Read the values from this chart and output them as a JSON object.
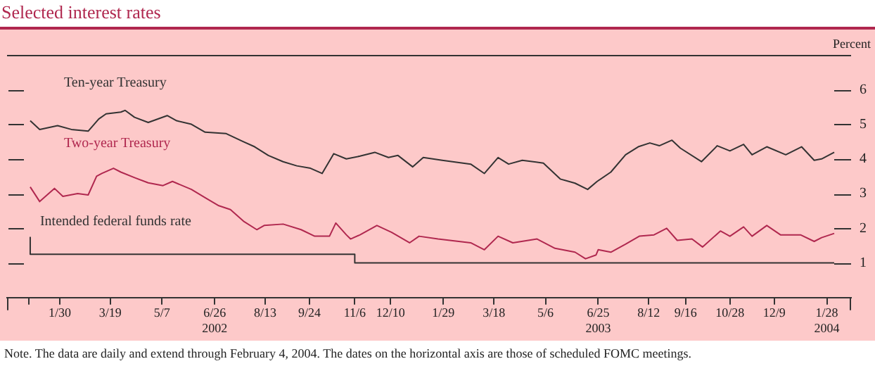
{
  "chart_data": {
    "type": "line",
    "title": "Selected interest rates",
    "ylabel": "Percent",
    "xlim": [
      "2001-12-11",
      "2004-02-20"
    ],
    "xticks": [
      {
        "value": "2002-01-01",
        "label": null
      },
      {
        "value": "2002-01-30",
        "label": "1/30"
      },
      {
        "value": "2002-03-19",
        "label": "3/19"
      },
      {
        "value": "2002-05-07",
        "label": "5/7"
      },
      {
        "value": "2002-06-26",
        "label": "6/26\n2002"
      },
      {
        "value": "2002-08-13",
        "label": "8/13"
      },
      {
        "value": "2002-09-24",
        "label": "9/24"
      },
      {
        "value": "2002-11-06",
        "label": "11/6"
      },
      {
        "value": "2002-12-10",
        "label": "12/10"
      },
      {
        "value": "2003-01-29",
        "label": "1/29"
      },
      {
        "value": "2003-03-18",
        "label": "3/18"
      },
      {
        "value": "2003-05-06",
        "label": "5/6"
      },
      {
        "value": "2003-06-25",
        "label": "6/25\n2003"
      },
      {
        "value": "2003-08-12",
        "label": "8/12"
      },
      {
        "value": "2003-09-16",
        "label": "9/16"
      },
      {
        "value": "2003-10-28",
        "label": "10/28"
      },
      {
        "value": "2003-12-09",
        "label": "12/9"
      },
      {
        "value": "2004-01-28",
        "label": "1/28\n2004"
      }
    ],
    "ylim": [
      0,
      7
    ],
    "yticks": [
      1,
      2,
      3,
      4,
      5,
      6
    ],
    "grid": false,
    "series": [
      {
        "name": "Ten-year Treasury",
        "color": "#333333",
        "x": [
          "2002-01-02",
          "2002-01-11",
          "2002-01-28",
          "2002-02-10",
          "2002-02-26",
          "2002-03-08",
          "2002-03-15",
          "2002-03-29",
          "2002-04-02",
          "2002-04-11",
          "2002-04-24",
          "2002-05-12",
          "2002-05-21",
          "2002-06-04",
          "2002-06-17",
          "2002-07-07",
          "2002-07-23",
          "2002-08-03",
          "2002-08-16",
          "2002-08-30",
          "2002-09-12",
          "2002-09-25",
          "2002-10-06",
          "2002-10-17",
          "2002-10-29",
          "2002-11-11",
          "2002-11-25",
          "2002-12-08",
          "2002-12-17",
          "2002-12-31",
          "2003-01-10",
          "2003-01-28",
          "2003-02-24",
          "2003-03-09",
          "2003-03-22",
          "2003-04-01",
          "2003-04-14",
          "2003-05-04",
          "2003-05-20",
          "2003-06-03",
          "2003-06-15",
          "2003-06-24",
          "2003-07-07",
          "2003-07-21",
          "2003-08-02",
          "2003-08-13",
          "2003-08-22",
          "2003-09-03",
          "2003-09-11",
          "2003-10-01",
          "2003-10-16",
          "2003-10-28",
          "2003-11-10",
          "2003-11-18",
          "2003-12-02",
          "2003-12-20",
          "2004-01-04",
          "2004-01-16",
          "2004-01-23",
          "2004-02-04"
        ],
        "values": [
          5.1,
          4.85,
          4.96,
          4.85,
          4.8,
          5.15,
          5.3,
          5.35,
          5.4,
          5.2,
          5.05,
          5.25,
          5.1,
          5.0,
          4.77,
          4.73,
          4.5,
          4.35,
          4.1,
          3.92,
          3.8,
          3.73,
          3.58,
          4.15,
          4.0,
          4.08,
          4.19,
          4.04,
          4.1,
          3.77,
          4.04,
          3.96,
          3.85,
          3.58,
          4.04,
          3.85,
          3.96,
          3.88,
          3.42,
          3.3,
          3.12,
          3.35,
          3.62,
          4.12,
          4.35,
          4.46,
          4.38,
          4.54,
          4.31,
          3.92,
          4.38,
          4.23,
          4.42,
          4.12,
          4.35,
          4.12,
          4.35,
          3.96,
          4.0,
          4.19
        ]
      },
      {
        "name": "Two-year Treasury",
        "color": "#b0284f",
        "x": [
          "2002-01-02",
          "2002-01-11",
          "2002-01-25",
          "2002-02-02",
          "2002-02-16",
          "2002-02-26",
          "2002-03-06",
          "2002-03-11",
          "2002-03-22",
          "2002-03-29",
          "2002-04-11",
          "2002-04-24",
          "2002-05-08",
          "2002-05-17",
          "2002-06-04",
          "2002-06-17",
          "2002-06-30",
          "2002-07-11",
          "2002-07-24",
          "2002-08-05",
          "2002-08-12",
          "2002-08-30",
          "2002-09-16",
          "2002-09-29",
          "2002-10-13",
          "2002-10-19",
          "2002-10-29",
          "2002-11-02",
          "2002-11-11",
          "2002-11-27",
          "2002-12-11",
          "2002-12-28",
          "2003-01-06",
          "2003-01-24",
          "2003-02-24",
          "2003-03-09",
          "2003-03-22",
          "2003-04-05",
          "2003-04-28",
          "2003-05-15",
          "2003-06-03",
          "2003-06-13",
          "2003-06-23",
          "2003-06-25",
          "2003-07-07",
          "2003-07-21",
          "2003-08-03",
          "2003-08-17",
          "2003-08-29",
          "2003-09-08",
          "2003-09-22",
          "2003-10-02",
          "2003-10-19",
          "2003-10-28",
          "2003-11-10",
          "2003-11-18",
          "2003-12-02",
          "2003-12-15",
          "2004-01-03",
          "2004-01-16",
          "2004-01-23",
          "2004-02-04"
        ],
        "values": [
          3.19,
          2.77,
          3.15,
          2.92,
          3.0,
          2.96,
          3.5,
          3.58,
          3.73,
          3.62,
          3.46,
          3.31,
          3.23,
          3.35,
          3.12,
          2.88,
          2.65,
          2.54,
          2.19,
          1.96,
          2.08,
          2.12,
          1.96,
          1.77,
          1.77,
          2.15,
          1.81,
          1.69,
          1.81,
          2.08,
          1.88,
          1.58,
          1.77,
          1.69,
          1.58,
          1.38,
          1.77,
          1.58,
          1.69,
          1.42,
          1.31,
          1.12,
          1.23,
          1.38,
          1.31,
          1.54,
          1.77,
          1.81,
          2.0,
          1.65,
          1.69,
          1.46,
          1.92,
          1.77,
          2.04,
          1.77,
          2.08,
          1.81,
          1.81,
          1.62,
          1.73,
          1.85
        ]
      },
      {
        "name": "Intended federal funds rate",
        "type": "step",
        "color": "#333333",
        "x": [
          "2002-01-02",
          "2002-11-06",
          "2003-06-25",
          "2004-02-04"
        ],
        "values": [
          1.75,
          1.25,
          1.0,
          1.0
        ]
      }
    ],
    "annotations": [
      "Note. The data are daily and extend through February 4, 2004. The dates on the horizontal axis are those of scheduled FOMC meetings."
    ]
  }
}
